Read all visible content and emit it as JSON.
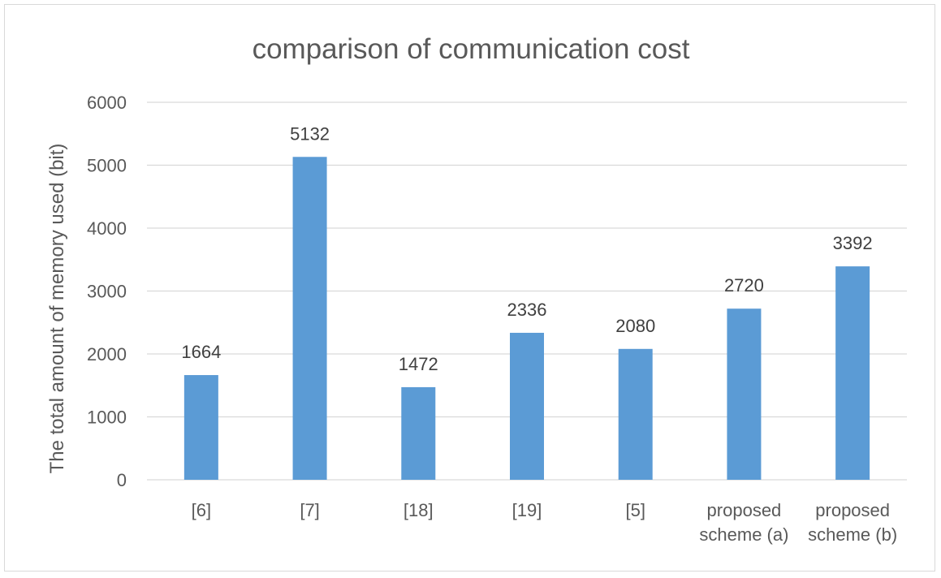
{
  "chart_data": {
    "type": "bar",
    "title": "comparison of communication cost",
    "xlabel": "",
    "ylabel": "The total amount of memory used (bit)",
    "ylim": [
      0,
      6000
    ],
    "yticks": [
      0,
      1000,
      2000,
      3000,
      4000,
      5000,
      6000
    ],
    "grid": true,
    "legend": "none",
    "categories": [
      [
        "[6]"
      ],
      [
        "[7]"
      ],
      [
        "[18]"
      ],
      [
        "[19]"
      ],
      [
        "[5]"
      ],
      [
        "proposed",
        "scheme (a)"
      ],
      [
        "proposed",
        "scheme (b)"
      ]
    ],
    "series": [
      {
        "values": [
          1664,
          5132,
          1472,
          2336,
          2080,
          2720,
          3392
        ],
        "color": "#5b9bd5"
      }
    ],
    "data_labels": true,
    "colors": {
      "bar": "#5b9bd5",
      "grid": "#d9d9d9",
      "text": "#595959",
      "title": "#595959"
    }
  }
}
